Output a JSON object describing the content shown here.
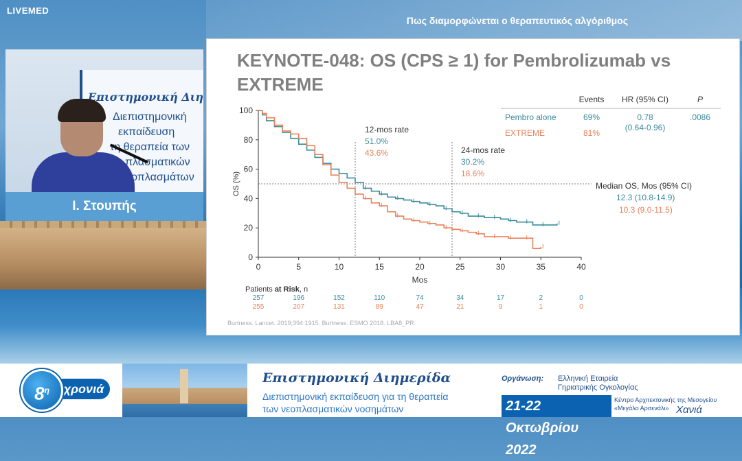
{
  "broadcast": {
    "brand": "LIVEMED",
    "topic": "Πως διαμορφώνεται ο θεραπευτικός αλγόριθμος"
  },
  "speaker": {
    "name": "Ι. Στουπής",
    "banner_line1": "Επιστημονική Διημερίδα",
    "banner_line2": "Διεπιστημονική",
    "banner_line3": "εκπαίδευση",
    "banner_line4": "τη θεραπεία των",
    "banner_line5": "πλασματικών",
    "banner_line6": "νεοπλασμάτων"
  },
  "slide": {
    "title": "KEYNOTE-048: OS (CPS ≥ 1) for Pembrolizumab vs EXTREME",
    "citation": "Burtness. Lancet. 2019;394:1915. Burtness. ESMO 2018. LBA8_PR."
  },
  "colors": {
    "pembro": "#3a8c9c",
    "extreme": "#e8825a",
    "axis": "#333333",
    "title": "#7f7f7f"
  },
  "chart_data": {
    "type": "line",
    "subtype": "kaplan-meier",
    "xlabel": "Mos",
    "ylabel": "OS (%)",
    "xlim": [
      0,
      40
    ],
    "ylim": [
      0,
      100
    ],
    "xticks": [
      0,
      5,
      10,
      15,
      20,
      25,
      30,
      35,
      40
    ],
    "yticks": [
      0,
      20,
      40,
      60,
      80,
      100
    ],
    "reference_lines": {
      "median_y": 50,
      "vertical_x": [
        12,
        24
      ]
    },
    "table_headers": {
      "events": "Events",
      "hr": "HR (95% CI)",
      "p": "P"
    },
    "series": [
      {
        "name": "Pembro alone",
        "events": "69%",
        "hr": "0.78",
        "hr_ci": "(0.64-0.96)",
        "p": ".0086",
        "rate_12": "51.0%",
        "rate_24": "30.2%",
        "median": "12.3 (10.8-14.9)",
        "x": [
          0,
          0.5,
          1,
          2,
          3,
          4,
          5,
          6,
          7,
          8,
          9,
          10,
          11,
          12,
          13,
          14,
          15,
          16,
          17,
          18,
          19,
          20,
          21,
          22,
          23,
          24,
          25,
          26,
          27,
          28,
          29,
          30,
          31,
          32,
          33,
          34,
          35,
          36,
          37
        ],
        "y": [
          100,
          97,
          93,
          89,
          85,
          81,
          77,
          73,
          68,
          64,
          60,
          57,
          54,
          51,
          47,
          45,
          43,
          41,
          40,
          39,
          38,
          37,
          36,
          35,
          33,
          31,
          30,
          28,
          28,
          27,
          27,
          26,
          25,
          24,
          24,
          22,
          22,
          22,
          23
        ],
        "at_risk": [
          257,
          196,
          152,
          110,
          74,
          34,
          17,
          2,
          0
        ]
      },
      {
        "name": "EXTREME",
        "events": "81%",
        "rate_12": "43.6%",
        "rate_24": "18.6%",
        "median": "10.3 (9.0-11.5)",
        "x": [
          0,
          0.5,
          1,
          2,
          3,
          4,
          5,
          6,
          7,
          8,
          9,
          10,
          11,
          12,
          13,
          14,
          15,
          16,
          17,
          18,
          19,
          20,
          21,
          22,
          23,
          24,
          25,
          26,
          27,
          28,
          29,
          30,
          31,
          32,
          33,
          34,
          35
        ],
        "y": [
          100,
          98,
          95,
          90,
          86,
          84,
          81,
          76,
          70,
          63,
          56,
          51,
          47,
          43,
          40,
          37,
          35,
          31,
          28,
          26,
          25,
          24,
          23,
          22,
          20,
          19,
          18,
          17,
          16,
          14,
          14,
          14,
          13,
          13,
          13,
          6,
          7
        ],
        "at_risk": [
          255,
          207,
          131,
          89,
          47,
          21,
          9,
          1,
          0
        ]
      }
    ],
    "rate_labels": {
      "at_12": "12-mos rate",
      "at_24": "24-mos rate"
    },
    "median_label": "Median OS, Mos (95% CI)",
    "at_risk_label_prefix": "Patients ",
    "at_risk_label_bold": "at Risk",
    "at_risk_label_suffix": ", n"
  },
  "footer": {
    "badge_number": "8",
    "badge_superscript": "η",
    "badge_word": "χρονιά",
    "event_title": "Επιστημονική Διημερίδα",
    "event_sub1": "Διεπιστημονική εκπαίδευση για τη θεραπεία",
    "event_sub2": "των νεοπλασματικών νοσημάτων",
    "org_label": "Οργάνωση:",
    "org_name_line1": "Ελληνική Εταιρεία",
    "org_name_line2": "Γηριατρικής Ογκολογίας",
    "dates": "21-22 Οκτωβρίου 2022",
    "venue_line1": "Κέντρο Αρχιτεκτονικής της Μεσογείου",
    "venue_line2": "«Μεγάλο Αρσενάλι»",
    "venue_city": "Χανιά"
  }
}
